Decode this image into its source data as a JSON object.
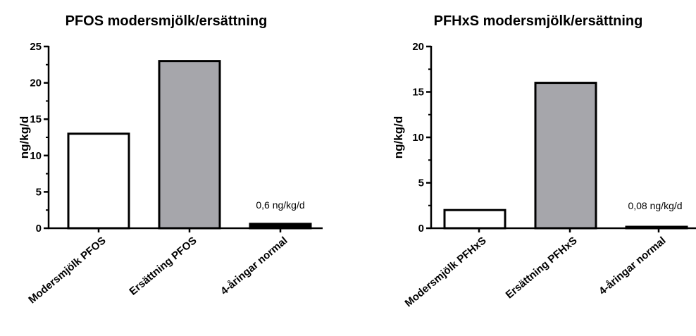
{
  "chart_data": [
    {
      "type": "bar",
      "title": "PFOS modersmjölk/ersättning",
      "ylabel": "ng/kg/d",
      "categories": [
        "Modersmjölk PFOS",
        "Ersättning PFOS",
        "4-åringar normal"
      ],
      "values": [
        13,
        23,
        0.6
      ],
      "bar_colors": [
        "#ffffff",
        "#a6a6ab",
        "#000000"
      ],
      "ylim": [
        0,
        25
      ],
      "yticks": [
        "0",
        "5",
        "10",
        "15",
        "20",
        "25"
      ],
      "annotation": "0,6 ng/kg/d",
      "grid": false
    },
    {
      "type": "bar",
      "title": "PFHxS modersmjölk/ersättning",
      "ylabel": "ng/kg/d",
      "categories": [
        "Modersmjölk PFHxS",
        "Ersättning PFHxS",
        "4-åringar normal"
      ],
      "values": [
        2,
        16,
        0.08
      ],
      "bar_colors": [
        "#ffffff",
        "#a6a6ab",
        "#000000"
      ],
      "ylim": [
        0,
        20
      ],
      "yticks": [
        "0",
        "5",
        "10",
        "15",
        "20"
      ],
      "annotation": "0,08 ng/kg/d",
      "grid": false
    }
  ]
}
